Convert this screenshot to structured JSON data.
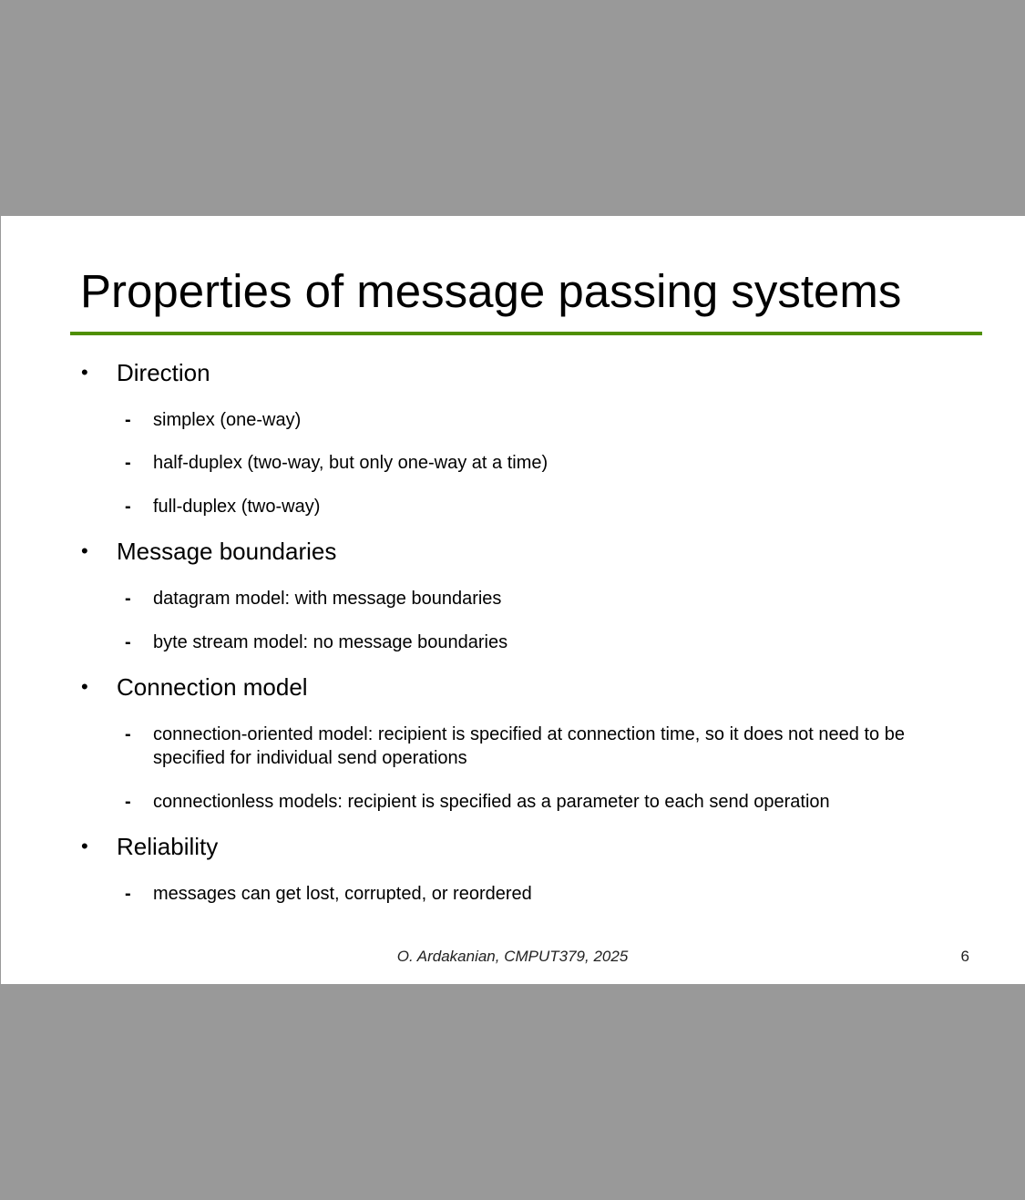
{
  "slide": {
    "title": "Properties of message passing systems",
    "sections": [
      {
        "bullet": "•",
        "label": "Direction",
        "items": [
          {
            "marker": "-",
            "text": "simplex (one-way)"
          },
          {
            "marker": "-",
            "text": "half-duplex (two-way, but only one-way at a time)"
          },
          {
            "marker": "-",
            "text": "full-duplex (two-way)"
          }
        ]
      },
      {
        "bullet": "•",
        "label": "Message boundaries",
        "items": [
          {
            "marker": "-",
            "text": "datagram model: with message boundaries"
          },
          {
            "marker": "-",
            "text": "byte stream model: no message boundaries"
          }
        ]
      },
      {
        "bullet": "•",
        "label": "Connection model",
        "items": [
          {
            "marker": "-",
            "text": "connection-oriented model: recipient is specified at connection time, so it does not need to be specified for individual send operations"
          },
          {
            "marker": "-",
            "text": "connectionless models: recipient is specified as a parameter to each send operation"
          }
        ]
      },
      {
        "bullet": "•",
        "label": "Reliability",
        "items": [
          {
            "marker": "-",
            "text": "messages can get lost, corrupted, or reordered"
          }
        ]
      }
    ],
    "footer": "O. Ardakanian, CMPUT379, 2025",
    "page_number": "6"
  },
  "colors": {
    "background": "#999999",
    "slide": "#ffffff",
    "accent_rule": "#4f8f00"
  }
}
